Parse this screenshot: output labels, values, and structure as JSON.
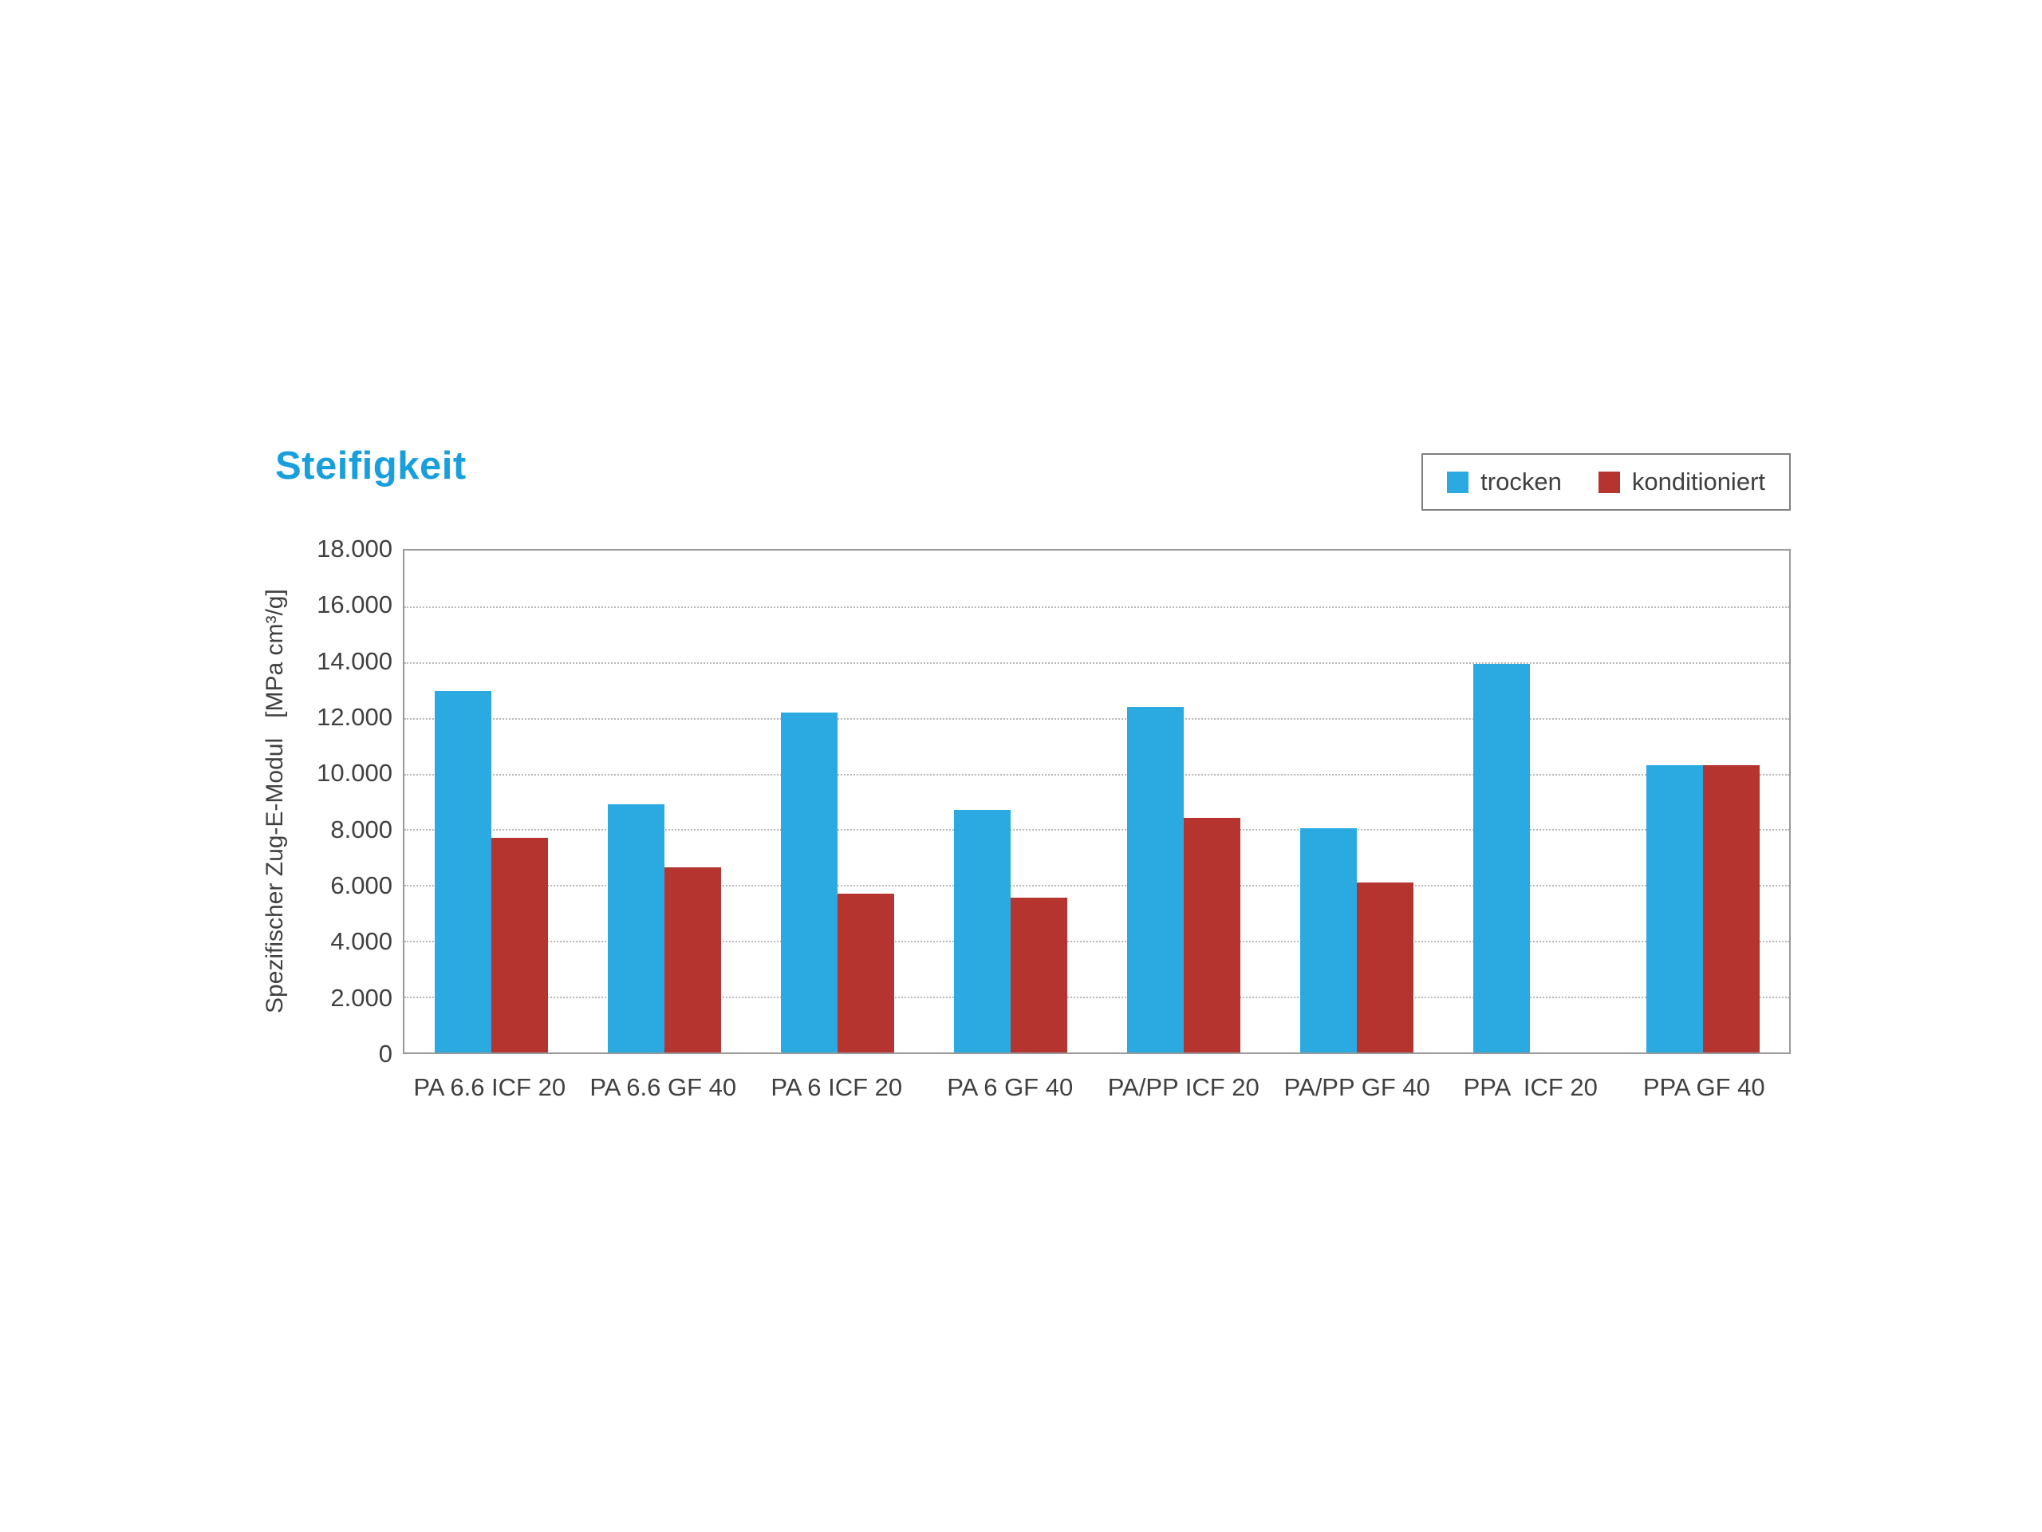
{
  "page": {
    "background": "#ffffff"
  },
  "chart_data": {
    "type": "bar",
    "title": "Steifigkeit",
    "title_color": "#199fdb",
    "ylabel": "Spezifischer Zug-E-Modul   [MPa cm³/g]",
    "xlabel": "",
    "ylim": [
      0,
      18000
    ],
    "ytick_step": 2000,
    "ytick_labels": [
      "0",
      "2.000",
      "4.000",
      "6.000",
      "8.000",
      "10.000",
      "12.000",
      "14.000",
      "16.000",
      "18.000"
    ],
    "grid": "horizontal-dotted",
    "gridline_color": "#b8b8b8",
    "legend_position": "top-right",
    "categories": [
      "PA 6.6 ICF 20",
      "PA 6.6 GF 40",
      "PA 6 ICF 20",
      "PA 6 GF 40",
      "PA/PP ICF 20",
      "PA/PP GF 40",
      "PPA  ICF 20",
      "PPA GF 40"
    ],
    "series": [
      {
        "name": "trocken",
        "color": "#2baae2",
        "values": [
          12950,
          8900,
          12200,
          8700,
          12400,
          8050,
          13950,
          10300
        ]
      },
      {
        "name": "konditioniert",
        "color": "#b5342f",
        "values": [
          7700,
          6650,
          5700,
          5550,
          8400,
          6100,
          0,
          10300
        ]
      }
    ]
  }
}
